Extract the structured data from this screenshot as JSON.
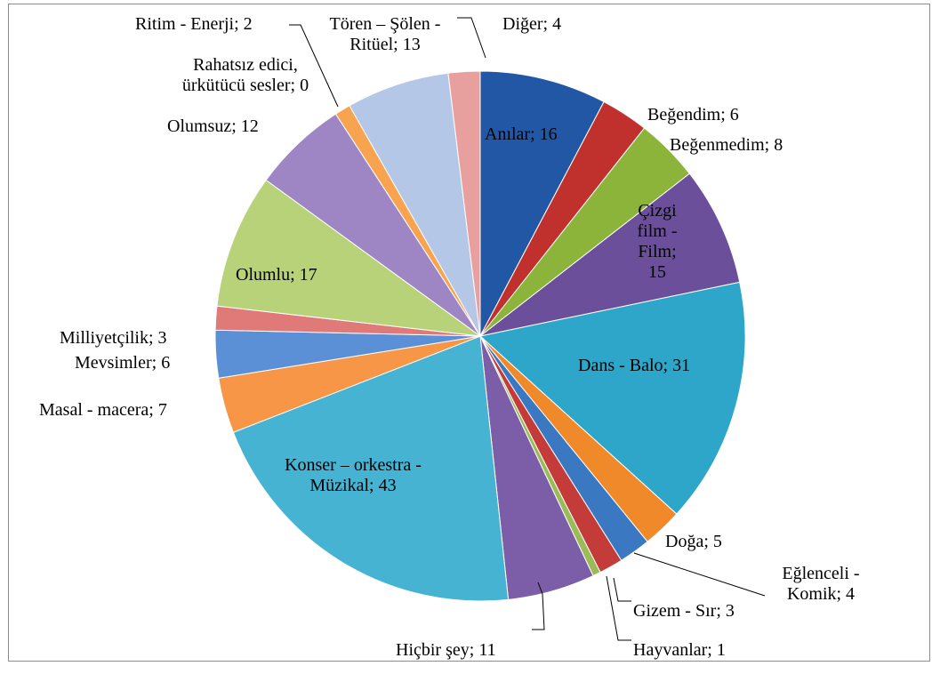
{
  "chart_data": {
    "type": "pie",
    "categories": [
      "Anılar",
      "Beğendim",
      "Beğenmedim",
      "Çizgi film - Film",
      "Dans  - Balo",
      "Doğa",
      "Eğlenceli - Komik",
      "Gizem - Sır",
      "Hayvanlar",
      "Hiçbir şey",
      "Konser – orkestra - Müzikal",
      "Masal - macera",
      "Mevsimler",
      "Milliyetçilik",
      "Olumlu",
      "Olumsuz",
      "Rahatsız edici, ürkütücü sesler",
      "Ritim - Enerji",
      "Tören – Şölen - Ritüel",
      "Diğer"
    ],
    "values": [
      16,
      6,
      8,
      15,
      31,
      5,
      4,
      3,
      1,
      11,
      43,
      7,
      6,
      3,
      17,
      12,
      0,
      2,
      13,
      4
    ],
    "value_labels": [
      "; 16",
      "; 6",
      "; 8",
      "; 15",
      "; 31",
      "; 5",
      "; 4",
      "; 3",
      "; 1",
      "; 11",
      "; 43",
      "; 7",
      "; 6",
      "; 3",
      "; 17",
      "; 12",
      "; 0",
      "; 2",
      "; 13",
      "; 4"
    ],
    "colors": [
      "#2257a5",
      "#c0302c",
      "#8db43a",
      "#6b4f9a",
      "#2ea6c9",
      "#f0892a",
      "#3a78c2",
      "#c43c39",
      "#9bbb59",
      "#7b5ea7",
      "#46b3d3",
      "#f79646",
      "#5b8fd6",
      "#e07a78",
      "#b8d27a",
      "#9e86c4",
      "#4bacc6",
      "#f7a350",
      "#b4c7e7",
      "#e8a09e"
    ]
  }
}
